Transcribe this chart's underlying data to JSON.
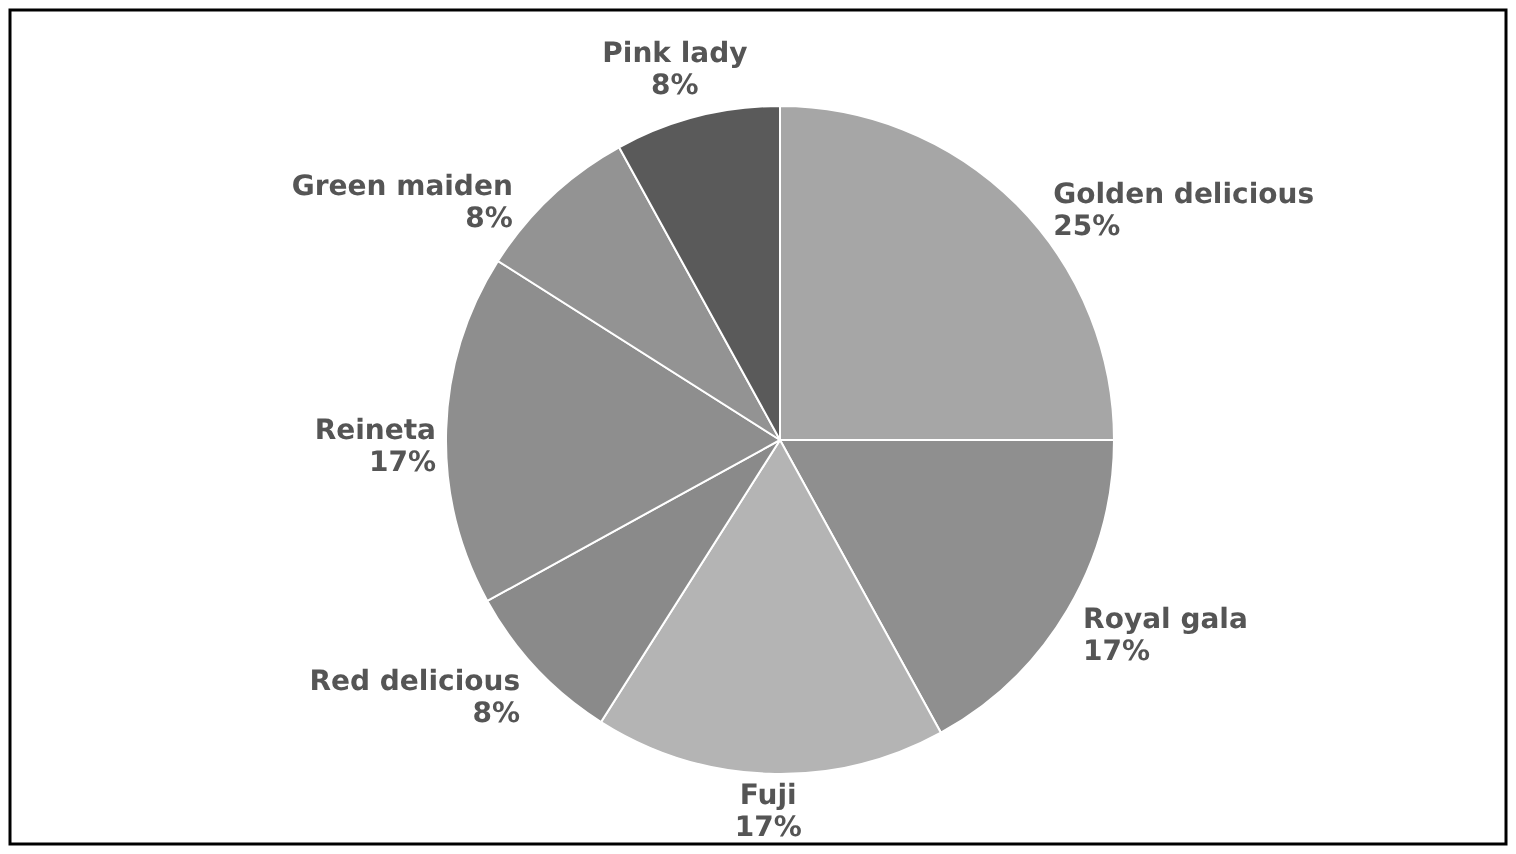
{
  "chart_data": {
    "type": "pie",
    "categories": [
      "Golden delicious",
      "Royal gala",
      "Fuji",
      "Red delicious",
      "Reineta",
      "Green maiden",
      "Pink lady"
    ],
    "values": [
      25,
      17,
      17,
      8,
      17,
      8,
      8
    ],
    "value_labels": [
      "25%",
      "17%",
      "17%",
      "8%",
      "17%",
      "8%",
      "8%"
    ],
    "colors": [
      "#a6a6a6",
      "#8f8f8f",
      "#b4b4b4",
      "#8a8a8a",
      "#8e8e8e",
      "#939393",
      "#5a5a5a"
    ]
  }
}
